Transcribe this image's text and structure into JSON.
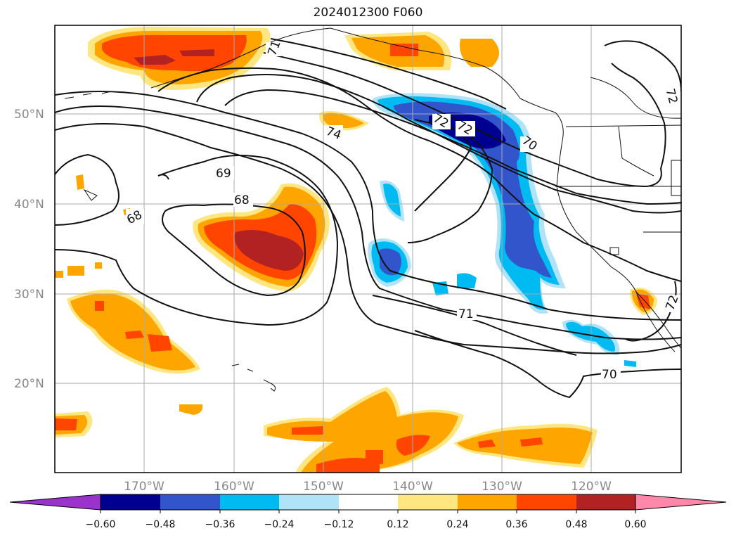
{
  "title": "2024012300 F060",
  "map": {
    "lat_labels": [
      "50°N",
      "40°N",
      "30°N",
      "20°N"
    ],
    "lon_labels": [
      "170°W",
      "160°W",
      "150°W",
      "140°W",
      "130°W",
      "120°W"
    ],
    "contour_labels": [
      "74",
      "69",
      "68",
      "68",
      "71",
      "70",
      "70",
      "72",
      "72",
      "72",
      "71",
      "72"
    ],
    "grid": true
  },
  "colorbar": {
    "tick_labels": [
      "−0.60",
      "−0.48",
      "−0.36",
      "−0.24",
      "−0.12",
      "0.12",
      "0.24",
      "0.36",
      "0.48",
      "0.60"
    ],
    "colors": [
      "#9933cc",
      "#000090",
      "#3355cc",
      "#00bbf2",
      "#b0e3f7",
      "#ffffff",
      "#ffe680",
      "#ffa500",
      "#ff4500",
      "#b22222",
      "#ff88aa"
    ]
  },
  "colors": {
    "neg_light": "#b0e3f7",
    "neg_mid": "#00bbf2",
    "neg_strong": "#3355cc",
    "neg_max": "#000090",
    "pos_light": "#ffe680",
    "pos_mid": "#ffa500",
    "pos_strong": "#ff4500",
    "pos_max": "#b22222"
  }
}
